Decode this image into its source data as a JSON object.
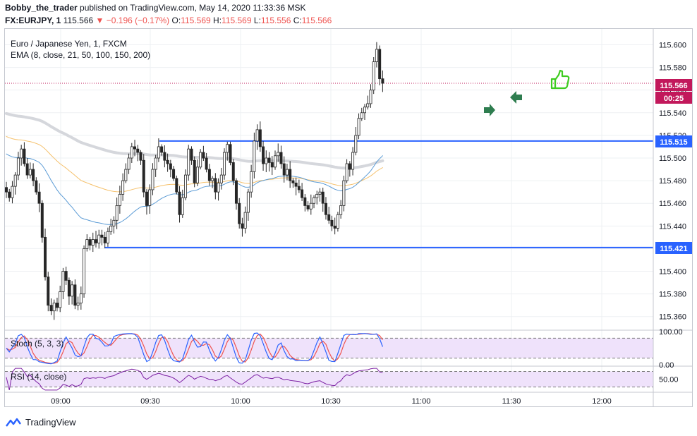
{
  "header": {
    "author": "Bobby_the_trader",
    "published_text": "published on TradingView.com, May 14, 2020 11:33:36 MSK",
    "symbol": "FX:EURJPY, 1",
    "last": "115.566",
    "change": "−0.196 (−0.17%)",
    "o_label": "O:",
    "o": "115.569",
    "h_label": "H:",
    "h": "115.569",
    "l_label": "L:",
    "l": "115.556",
    "c_label": "C:",
    "c": "115.566"
  },
  "legend": {
    "instrument": "Euro / Japanese Yen, 1, FXCM",
    "ema": "EMA (8, close, 21, 50, 100, 150, 200)",
    "stoch": "Stoch (5, 3, 3)",
    "rsi": "RSI (14, close)"
  },
  "price_tags": {
    "last": "115.566",
    "countdown": "00:25",
    "resistance": "115.515",
    "support": "115.421"
  },
  "branding": "TradingView",
  "colors": {
    "bull": "#26a69a",
    "bear": "#ef5350",
    "candle": "#262626",
    "level_line": "#2962ff",
    "last_price": "#c2185b",
    "ema_blue": "#5b9bd5",
    "ema_orange": "#f5c16c",
    "ema_grey": "#d5d7dc",
    "stoch_k": "#2962ff",
    "stoch_d": "#ef5350",
    "rsi": "#7b1fa2",
    "arrow": "#2e7d4f",
    "thumb": "#3ecc1f"
  },
  "chart_data": {
    "type": "candlestick",
    "x_ticks": [
      "09:00",
      "09:30",
      "10:00",
      "10:30",
      "11:00",
      "11:30",
      "12:00"
    ],
    "y_ticks": [
      "115.600",
      "115.580",
      "115.560",
      "115.540",
      "115.520",
      "115.500",
      "115.480",
      "115.460",
      "115.440",
      "115.420",
      "115.400",
      "115.380",
      "115.360"
    ],
    "ylim": [
      115.348,
      115.614
    ],
    "levels": [
      {
        "value": 115.515,
        "label": "115.515"
      },
      {
        "value": 115.421,
        "label": "115.421"
      }
    ],
    "last_price": 115.566,
    "close_series": [
      115.47,
      115.465,
      115.475,
      115.485,
      115.5,
      115.508,
      115.495,
      115.485,
      115.49,
      115.48,
      115.47,
      115.46,
      115.43,
      115.395,
      115.37,
      115.365,
      115.372,
      115.368,
      115.382,
      115.4,
      115.392,
      115.378,
      115.388,
      115.37,
      115.372,
      115.38,
      115.42,
      115.428,
      115.423,
      115.428,
      115.425,
      115.432,
      115.43,
      115.425,
      115.435,
      115.44,
      115.445,
      115.458,
      115.468,
      115.48,
      115.49,
      115.5,
      115.51,
      115.508,
      115.505,
      115.498,
      115.47,
      115.458,
      115.472,
      115.49,
      115.5,
      115.51,
      115.505,
      115.498,
      115.495,
      115.49,
      115.482,
      115.47,
      115.45,
      115.465,
      115.485,
      115.508,
      115.498,
      115.478,
      115.492,
      115.505,
      115.5,
      115.49,
      115.48,
      115.482,
      115.47,
      115.478,
      115.485,
      115.505,
      115.512,
      115.496,
      115.48,
      115.46,
      115.442,
      115.438,
      115.452,
      115.47,
      115.488,
      115.515,
      115.525,
      115.51,
      115.495,
      115.5,
      115.496,
      115.492,
      115.502,
      115.505,
      115.495,
      115.485,
      115.49,
      115.48,
      115.478,
      115.475,
      115.472,
      115.465,
      115.458,
      115.455,
      115.46,
      115.465,
      115.468,
      115.47,
      115.46,
      115.45,
      115.445,
      115.44,
      115.438,
      115.45,
      115.458,
      115.48,
      115.495,
      115.49,
      115.505,
      115.52,
      115.535,
      115.54,
      115.545,
      115.548,
      115.56,
      115.585,
      115.596,
      115.57,
      115.566
    ],
    "stoch_ylim": [
      0,
      100
    ],
    "stoch_ticks": [
      "100.00",
      "0.00"
    ],
    "stoch_bands": [
      80,
      20
    ],
    "rsi_ylim": [
      20,
      80
    ],
    "rsi_ticks": [
      "50.00"
    ],
    "rsi_bands": [
      70,
      30
    ]
  }
}
